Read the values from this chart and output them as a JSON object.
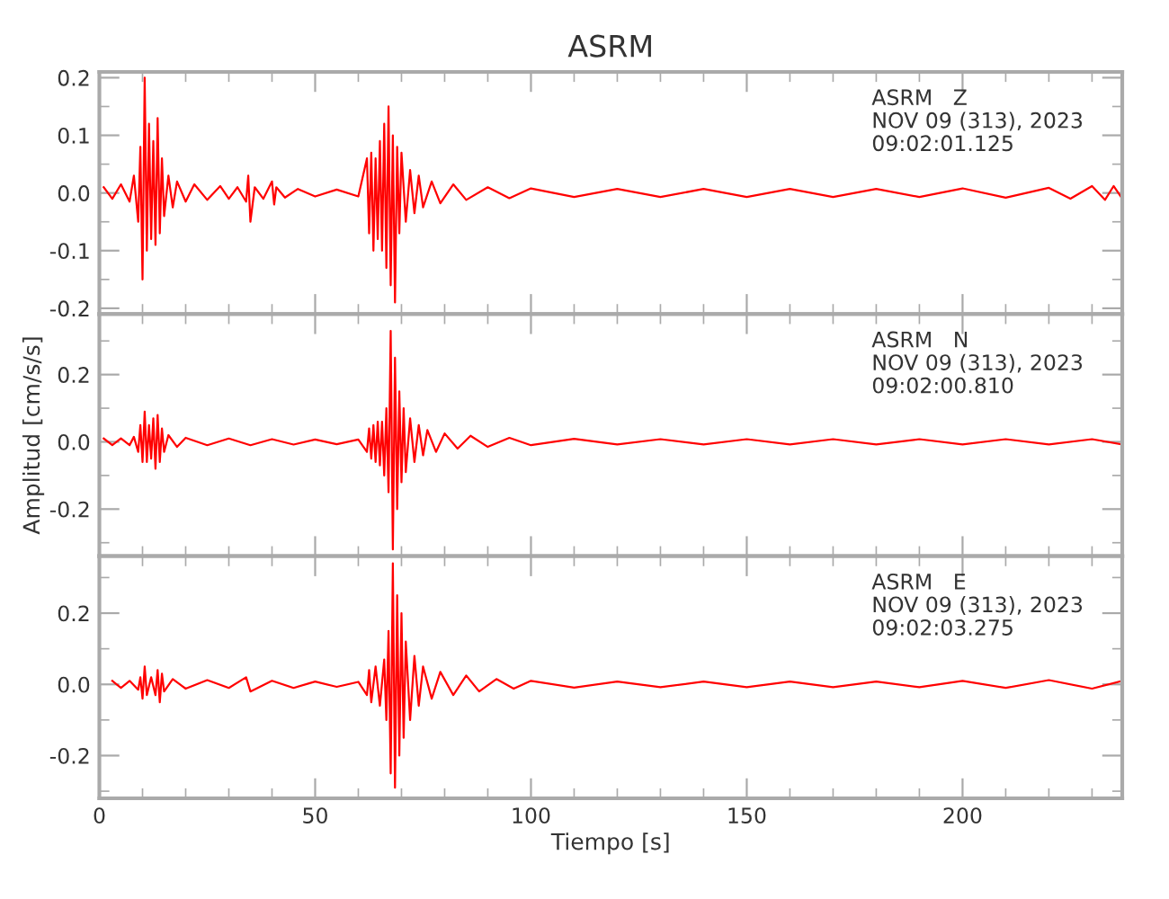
{
  "chart_data": [
    {
      "type": "line",
      "title": "ASRM",
      "tick_labels": "y",
      "annotations": [
        "ASRM   Z\nNOV 09 (313), 2023\n09:02:01.125"
      ],
      "xlim": [
        0,
        237
      ],
      "xticks": [
        0,
        {
          "value": 10,
          "label": null
        },
        {
          "value": 20,
          "label": null
        },
        {
          "value": 30,
          "label": null
        },
        {
          "value": 40,
          "label": null
        },
        50,
        {
          "value": 60,
          "label": null
        },
        {
          "value": 70,
          "label": null
        },
        {
          "value": 80,
          "label": null
        },
        {
          "value": 90,
          "label": null
        },
        100,
        {
          "value": 110,
          "label": null
        },
        {
          "value": 120,
          "label": null
        },
        {
          "value": 130,
          "label": null
        },
        {
          "value": 140,
          "label": null
        },
        150,
        {
          "value": 160,
          "label": null
        },
        {
          "value": 170,
          "label": null
        },
        {
          "value": 180,
          "label": null
        },
        {
          "value": 190,
          "label": null
        },
        200,
        {
          "value": 210,
          "label": null
        },
        {
          "value": 220,
          "label": null
        },
        {
          "value": 230,
          "label": null
        }
      ],
      "ylim": [
        -0.21,
        0.21
      ],
      "yticks": [
        -0.2,
        {
          "value": -0.15,
          "label": null
        },
        -0.1,
        {
          "value": -0.05,
          "label": null
        },
        {
          "value": 0,
          "label": "0.0"
        },
        {
          "value": 0.05,
          "label": null
        },
        0.1,
        {
          "value": 0.15,
          "label": null
        },
        0.2
      ],
      "series": [
        {
          "color": "#ff0000",
          "x": [
            1,
            3,
            5,
            7,
            8,
            9,
            9.5,
            10,
            10.5,
            11,
            11.5,
            12,
            12.5,
            13,
            13.5,
            14,
            14.5,
            15,
            16,
            17,
            18,
            20,
            22,
            25,
            28,
            30,
            32,
            34,
            34.5,
            35,
            36,
            38,
            40,
            40.5,
            41,
            43,
            46,
            50,
            55,
            60,
            62,
            62.5,
            63,
            63.5,
            64,
            64.5,
            65,
            65.5,
            66,
            66.5,
            67,
            67.5,
            68,
            68.5,
            69,
            69.5,
            70,
            71,
            72,
            73,
            74,
            75,
            77,
            79,
            82,
            85,
            90,
            95,
            100,
            110,
            120,
            130,
            140,
            150,
            160,
            170,
            180,
            190,
            200,
            210,
            220,
            225,
            230,
            233,
            235,
            237
          ],
          "values": [
            0.01,
            -0.01,
            0.015,
            -0.015,
            0.03,
            -0.05,
            0.08,
            -0.15,
            0.2,
            -0.1,
            0.12,
            -0.08,
            0.09,
            -0.09,
            0.13,
            -0.07,
            0.06,
            -0.04,
            0.03,
            -0.025,
            0.02,
            -0.015,
            0.015,
            -0.012,
            0.012,
            -0.01,
            0.01,
            -0.015,
            0.03,
            -0.05,
            0.01,
            -0.01,
            0.02,
            -0.02,
            0.01,
            -0.008,
            0.007,
            -0.006,
            0.006,
            -0.006,
            0.06,
            -0.07,
            0.07,
            -0.1,
            0.06,
            -0.08,
            0.09,
            -0.1,
            0.12,
            -0.13,
            0.15,
            -0.16,
            0.1,
            -0.19,
            0.08,
            -0.07,
            0.07,
            -0.05,
            0.04,
            -0.035,
            0.03,
            -0.025,
            0.02,
            -0.018,
            0.015,
            -0.012,
            0.01,
            -0.009,
            0.008,
            -0.007,
            0.007,
            -0.007,
            0.007,
            -0.007,
            0.007,
            -0.007,
            0.007,
            -0.007,
            0.008,
            -0.008,
            0.009,
            -0.01,
            0.012,
            -0.012,
            0.012,
            -0.01
          ]
        }
      ]
    },
    {
      "type": "line",
      "ylabel": "Amplitud [cm/s/s]",
      "tick_labels": "y",
      "annotations": [
        "ASRM   N\nNOV 09 (313), 2023\n09:02:00.810"
      ],
      "xlim": [
        0,
        237
      ],
      "xticks": [
        0,
        {
          "value": 10,
          "label": null
        },
        {
          "value": 20,
          "label": null
        },
        {
          "value": 30,
          "label": null
        },
        {
          "value": 40,
          "label": null
        },
        50,
        {
          "value": 60,
          "label": null
        },
        {
          "value": 70,
          "label": null
        },
        {
          "value": 80,
          "label": null
        },
        {
          "value": 90,
          "label": null
        },
        100,
        {
          "value": 110,
          "label": null
        },
        {
          "value": 120,
          "label": null
        },
        {
          "value": 130,
          "label": null
        },
        {
          "value": 140,
          "label": null
        },
        150,
        {
          "value": 160,
          "label": null
        },
        {
          "value": 170,
          "label": null
        },
        {
          "value": 180,
          "label": null
        },
        {
          "value": 190,
          "label": null
        },
        200,
        {
          "value": 210,
          "label": null
        },
        {
          "value": 220,
          "label": null
        },
        {
          "value": 230,
          "label": null
        }
      ],
      "ylim": [
        -0.34,
        0.38
      ],
      "yticks": [
        {
          "value": -0.3,
          "label": null
        },
        -0.2,
        {
          "value": -0.1,
          "label": null
        },
        {
          "value": 0,
          "label": "0.0"
        },
        {
          "value": 0.1,
          "label": null
        },
        0.2,
        {
          "value": 0.3,
          "label": null
        }
      ],
      "series": [
        {
          "color": "#ff0000",
          "x": [
            1,
            3,
            5,
            7,
            8,
            9,
            9.5,
            10,
            10.5,
            11,
            11.5,
            12,
            12.5,
            13,
            13.5,
            14,
            14.5,
            15,
            16,
            18,
            20,
            25,
            30,
            35,
            40,
            45,
            50,
            55,
            60,
            62,
            62.5,
            63,
            63.5,
            64,
            64.5,
            65,
            65.5,
            66,
            66.5,
            67,
            67.5,
            68,
            68.5,
            69,
            69.5,
            70,
            70.5,
            71,
            72,
            73,
            74,
            75,
            76,
            78,
            80,
            83,
            86,
            90,
            95,
            100,
            110,
            120,
            130,
            140,
            150,
            160,
            170,
            180,
            190,
            200,
            210,
            220,
            230,
            237
          ],
          "values": [
            0.01,
            -0.01,
            0.01,
            -0.01,
            0.015,
            -0.03,
            0.05,
            -0.06,
            0.09,
            -0.06,
            0.05,
            -0.05,
            0.07,
            -0.08,
            0.08,
            -0.06,
            0.04,
            -0.03,
            0.02,
            -0.015,
            0.012,
            -0.01,
            0.01,
            -0.01,
            0.008,
            -0.008,
            0.007,
            -0.007,
            0.007,
            -0.03,
            0.04,
            -0.05,
            0.05,
            -0.06,
            0.06,
            -0.07,
            0.06,
            -0.1,
            0.1,
            -0.15,
            0.33,
            -0.32,
            0.25,
            -0.2,
            0.15,
            -0.12,
            0.1,
            -0.09,
            0.07,
            -0.06,
            0.05,
            -0.04,
            0.035,
            -0.03,
            0.025,
            -0.02,
            0.018,
            -0.015,
            0.012,
            -0.01,
            0.009,
            -0.008,
            0.008,
            -0.008,
            0.008,
            -0.008,
            0.008,
            -0.008,
            0.008,
            -0.008,
            0.008,
            -0.008,
            0.008,
            -0.008
          ]
        }
      ]
    },
    {
      "type": "line",
      "xlabel": "Tiempo [s]",
      "annotations": [
        "ASRM   E\nNOV 09 (313), 2023\n09:02:03.275"
      ],
      "xlim": [
        0,
        237
      ],
      "xticks": [
        0,
        {
          "value": 10,
          "label": null
        },
        {
          "value": 20,
          "label": null
        },
        {
          "value": 30,
          "label": null
        },
        {
          "value": 40,
          "label": null
        },
        50,
        {
          "value": 60,
          "label": null
        },
        {
          "value": 70,
          "label": null
        },
        {
          "value": 80,
          "label": null
        },
        {
          "value": 90,
          "label": null
        },
        100,
        {
          "value": 110,
          "label": null
        },
        {
          "value": 120,
          "label": null
        },
        {
          "value": 130,
          "label": null
        },
        {
          "value": 140,
          "label": null
        },
        150,
        {
          "value": 160,
          "label": null
        },
        {
          "value": 170,
          "label": null
        },
        {
          "value": 180,
          "label": null
        },
        {
          "value": 190,
          "label": null
        },
        200,
        {
          "value": 210,
          "label": null
        },
        {
          "value": 220,
          "label": null
        },
        {
          "value": 230,
          "label": null
        }
      ],
      "ylim": [
        -0.32,
        0.36
      ],
      "yticks": [
        {
          "value": -0.3,
          "label": null
        },
        -0.2,
        {
          "value": -0.1,
          "label": null
        },
        {
          "value": 0,
          "label": "0.0"
        },
        {
          "value": 0.1,
          "label": null
        },
        0.2,
        {
          "value": 0.3,
          "label": null
        }
      ],
      "series": [
        {
          "color": "#ff0000",
          "x": [
            3,
            5,
            7,
            9,
            9.5,
            10,
            10.5,
            11,
            12,
            13,
            13.5,
            14,
            14.5,
            15,
            17,
            20,
            25,
            30,
            34,
            35,
            40,
            45,
            50,
            55,
            60,
            62,
            62.5,
            63,
            64,
            65,
            66,
            66.5,
            67,
            67.5,
            68,
            68.5,
            69,
            69.5,
            70,
            70.5,
            71,
            72,
            73,
            74,
            75,
            77,
            79,
            82,
            85,
            88,
            92,
            96,
            100,
            110,
            120,
            130,
            140,
            150,
            160,
            170,
            180,
            190,
            200,
            210,
            220,
            230,
            237
          ],
          "values": [
            0.01,
            -0.01,
            0.01,
            -0.015,
            0.02,
            -0.04,
            0.05,
            -0.03,
            0.02,
            -0.03,
            0.04,
            -0.05,
            0.03,
            -0.02,
            0.015,
            -0.012,
            0.012,
            -0.01,
            0.02,
            -0.02,
            0.01,
            -0.01,
            0.008,
            -0.007,
            0.007,
            -0.03,
            0.04,
            -0.05,
            0.05,
            -0.06,
            0.07,
            -0.1,
            0.15,
            -0.25,
            0.34,
            -0.29,
            0.25,
            -0.2,
            0.2,
            -0.15,
            0.12,
            -0.1,
            0.08,
            -0.06,
            0.05,
            -0.04,
            0.035,
            -0.03,
            0.025,
            -0.02,
            0.015,
            -0.012,
            0.01,
            -0.009,
            0.008,
            -0.008,
            0.008,
            -0.008,
            0.008,
            -0.008,
            0.008,
            -0.008,
            0.01,
            -0.01,
            0.012,
            -0.012,
            0.01
          ]
        }
      ]
    }
  ]
}
